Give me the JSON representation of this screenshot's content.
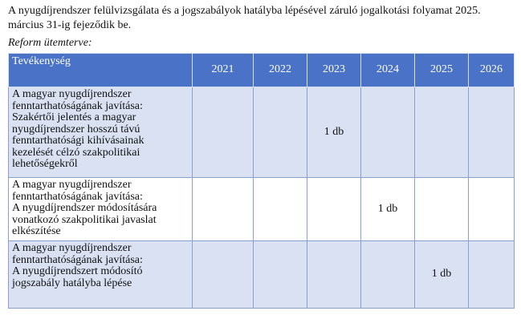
{
  "intro_text": "A nyugdíjrendszer felülvizsgálata és a jogszabályok hatályba lépésével záruló jogalkotási folyamat 2025. március 31-ig fejeződik be.",
  "caption": "Reform ütemterve:",
  "table": {
    "headers": [
      "Tevékenység",
      "2021",
      "2022",
      "2023",
      "2024",
      "2025",
      "2026"
    ],
    "rows": [
      {
        "activity_lines": [
          "A magyar nyugdíjrendszer",
          "fenntarthatóságának javítása:",
          "Szakértői jelentés a magyar",
          "nyugdíjrendszer hosszú távú",
          "fenntarthatósági kihívásainak",
          "kezelését célzó szakpolitikai",
          "lehetőségekről"
        ],
        "values": [
          "",
          "",
          "1 db",
          "",
          "",
          ""
        ]
      },
      {
        "activity_lines": [
          "A magyar nyugdíjrendszer",
          "fenntarthatóságának javítása:",
          "A nyugdíjrendszer módosítására",
          "vonatkozó szakpolitikai javaslat",
          "elkészítése"
        ],
        "values": [
          "",
          "",
          "",
          "1 db",
          "",
          ""
        ]
      },
      {
        "activity_lines": [
          "A magyar nyugdíjrendszer",
          "fenntarthatóságának javítása:",
          "A nyugdíjrendszert módosító",
          "jogszabály hatályba lépése"
        ],
        "values": [
          "",
          "",
          "",
          "",
          "1 db",
          ""
        ]
      }
    ]
  },
  "colors": {
    "header_bg": "#4a72c6",
    "band_bg": "#d9e1f2",
    "border": "#8aa0cc"
  }
}
